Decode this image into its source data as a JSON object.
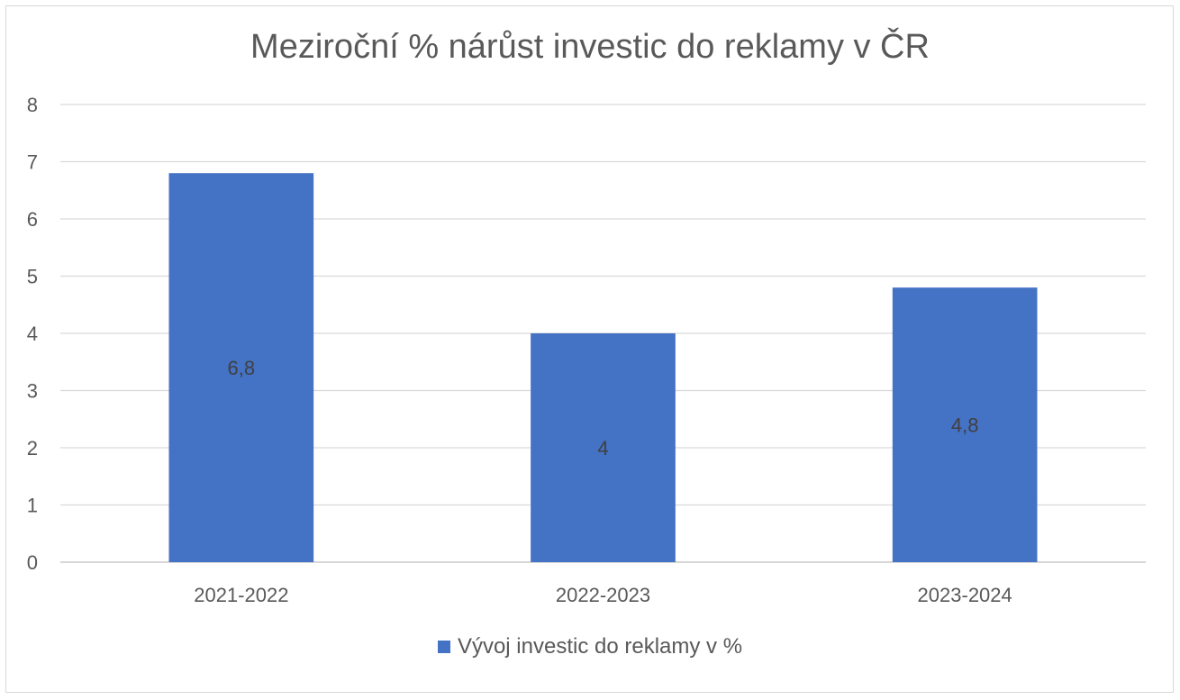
{
  "chart_data": {
    "type": "bar",
    "title": "Meziroční % nárůst investic do reklamy v ČR",
    "categories": [
      "2021-2022",
      "2022-2023",
      "2023-2024"
    ],
    "series": [
      {
        "name": "Vývoj investic do reklamy v %",
        "values": [
          6.8,
          4,
          4.8
        ],
        "data_labels": [
          "6,8",
          "4",
          "4,8"
        ],
        "color": "#4472c4"
      }
    ],
    "ylim": [
      0,
      8
    ],
    "yticks": [
      "0",
      "1",
      "2",
      "3",
      "4",
      "5",
      "6",
      "7",
      "8"
    ],
    "grid": true,
    "legend_position": "bottom",
    "xlabel": "",
    "ylabel": ""
  },
  "colors": {
    "bar": "#4472c4",
    "grid": "#d9d9d9",
    "text": "#595959",
    "data_label": "#404040"
  }
}
